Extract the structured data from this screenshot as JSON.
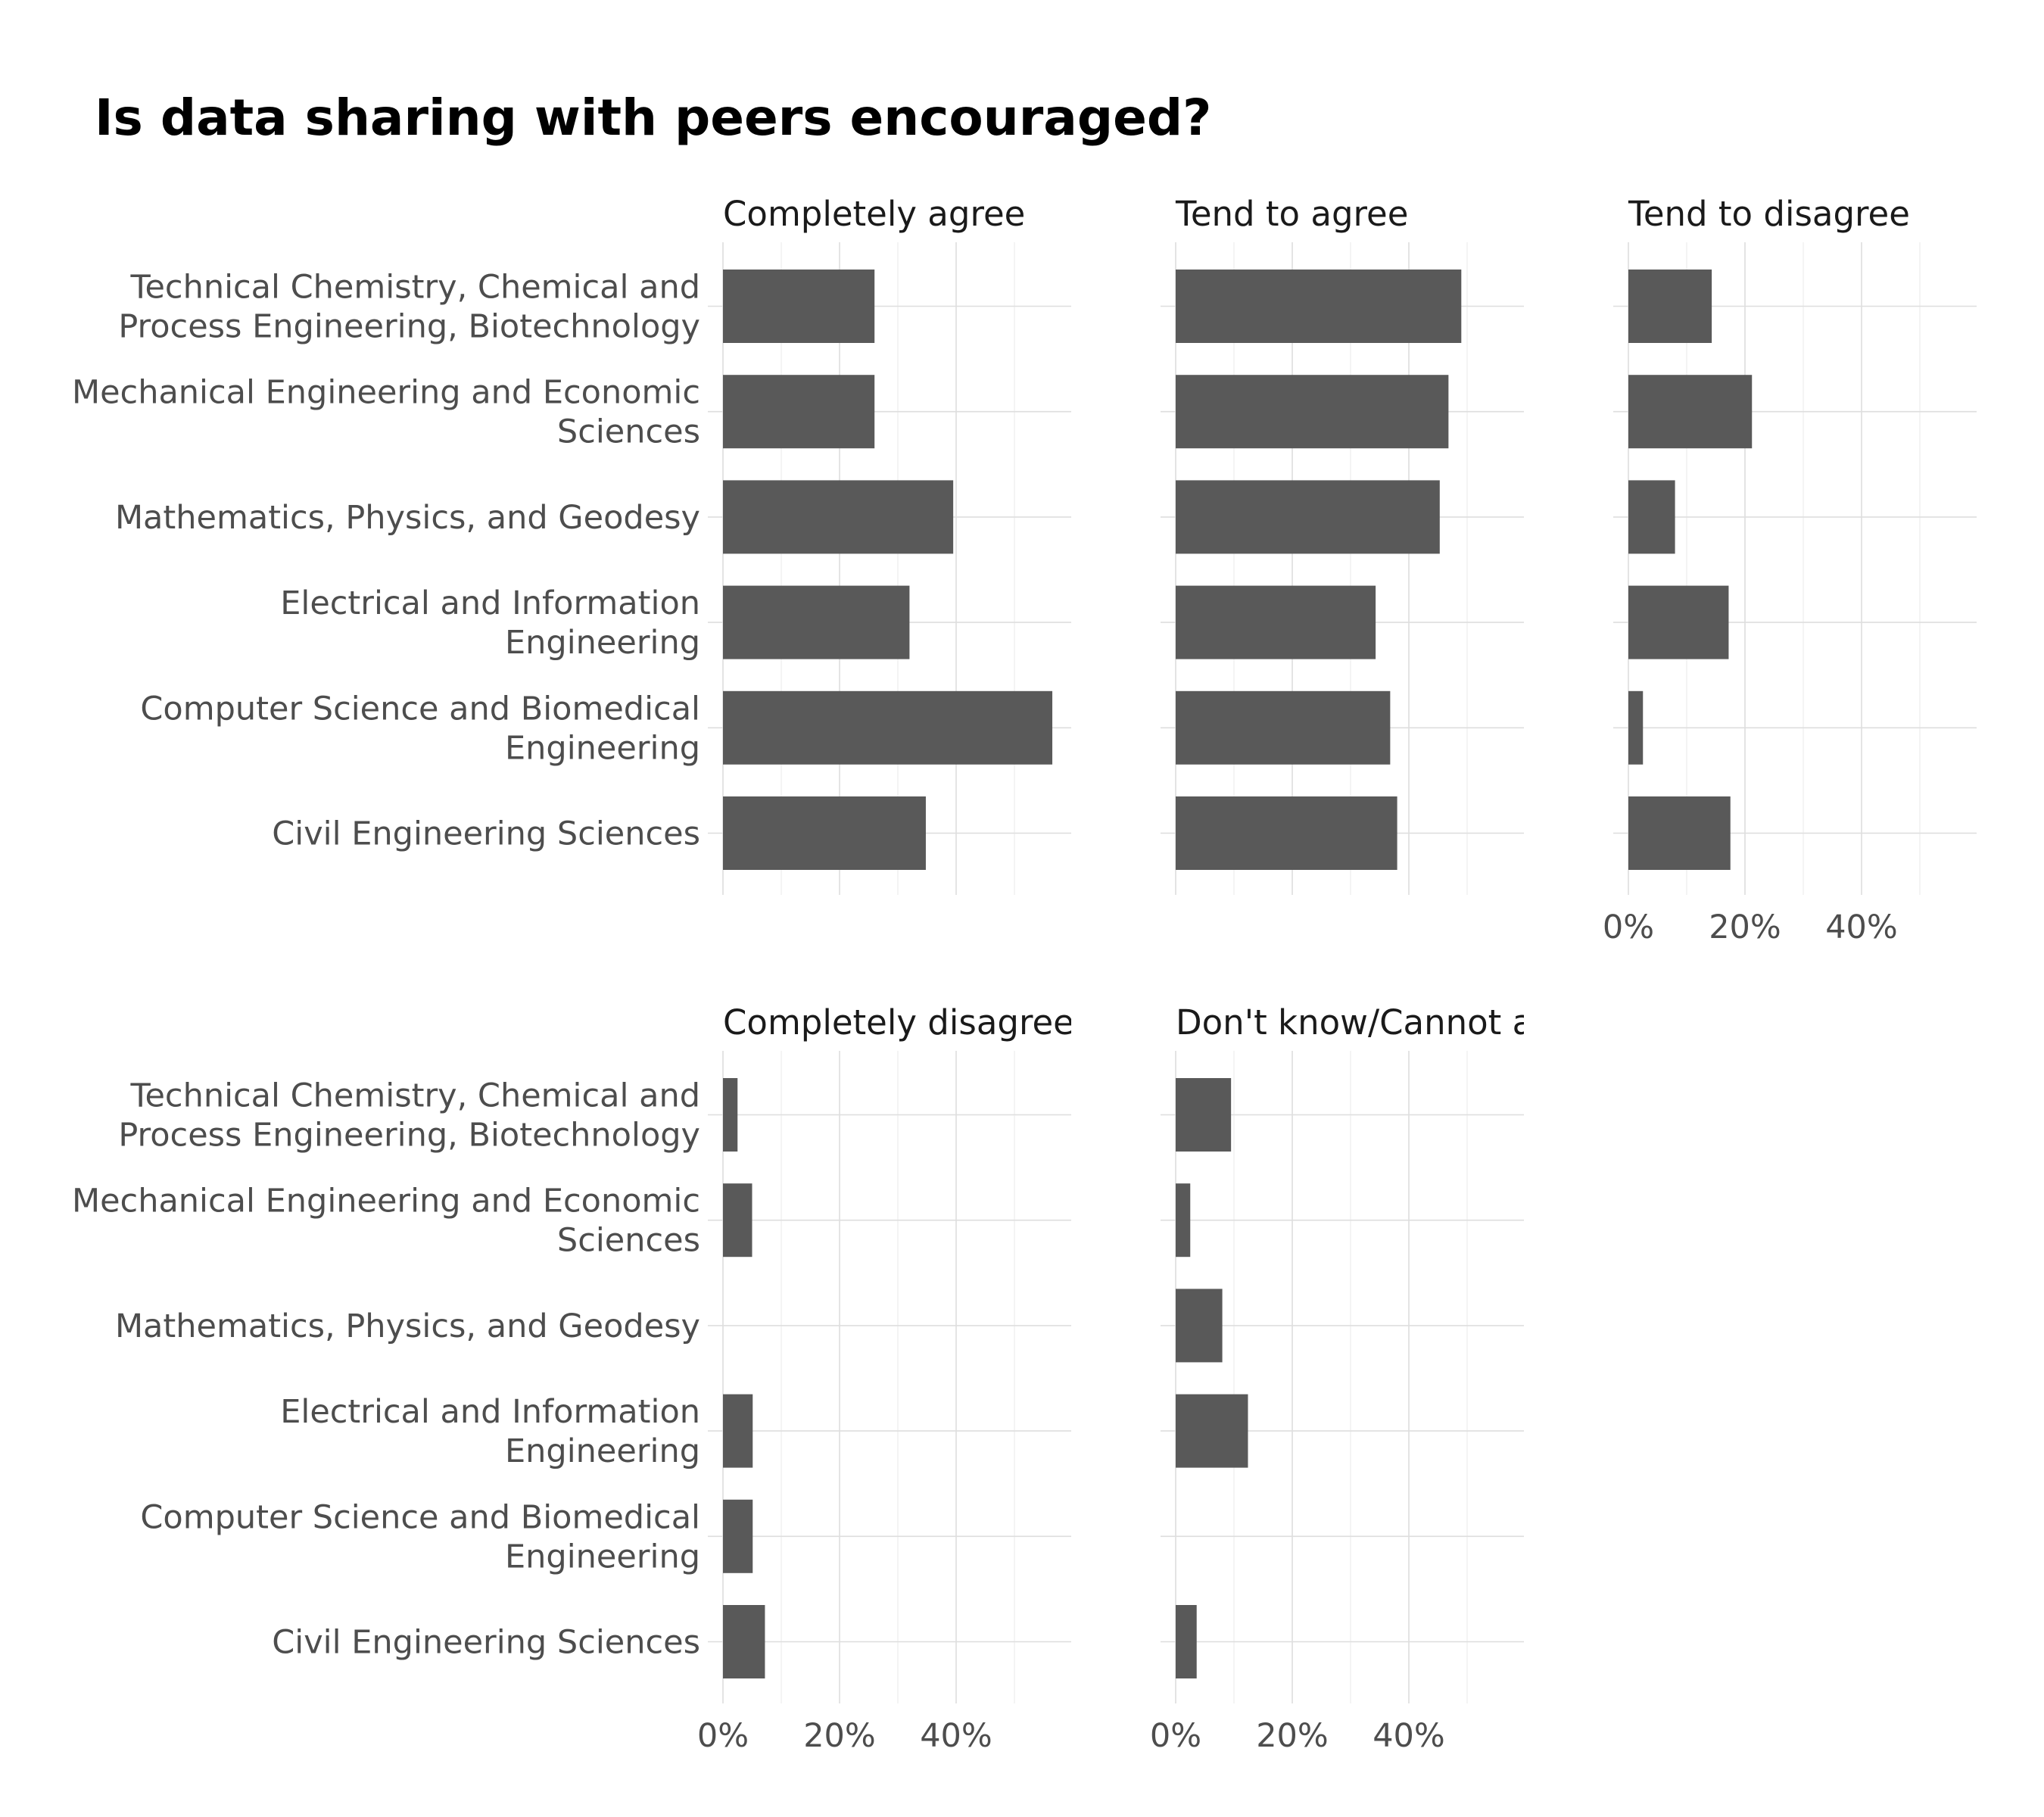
{
  "chart_data": {
    "type": "bar",
    "orientation": "horizontal",
    "title": "Is data sharing with peers encouraged?",
    "xlabel": "",
    "ylabel": "",
    "xlim": [
      0,
      0.6
    ],
    "x_ticks": [
      0,
      0.2,
      0.4
    ],
    "x_tick_labels": [
      "0%",
      "20%",
      "40%"
    ],
    "grid": true,
    "categories": [
      "Technical Chemistry, Chemical and Process Engineering, Biotechnology",
      "Mechanical Engineering and Economic Sciences",
      "Mathematics, Physics, and Geodesy",
      "Electrical and Information Engineering",
      "Computer Science and Biomedical Engineering",
      "Civil Engineering Sciences"
    ],
    "category_label_lines": [
      [
        "Technical Chemistry, Chemical and",
        "Process Engineering, Biotechnology"
      ],
      [
        "Mechanical Engineering and Economic",
        "Sciences"
      ],
      [
        "Mathematics, Physics, and Geodesy"
      ],
      [
        "Electrical and Information",
        "Engineering"
      ],
      [
        "Computer Science and Biomedical",
        "Engineering"
      ],
      [
        "Civil Engineering Sciences"
      ]
    ],
    "facets": [
      {
        "name": "Completely agree",
        "values": [
          0.26,
          0.26,
          0.395,
          0.32,
          0.565,
          0.348
        ]
      },
      {
        "name": "Tend to agree",
        "values": [
          0.49,
          0.468,
          0.453,
          0.343,
          0.368,
          0.38
        ]
      },
      {
        "name": "Tend to disagree",
        "values": [
          0.143,
          0.212,
          0.08,
          0.172,
          0.025,
          0.175
        ]
      },
      {
        "name": "Completely disagree",
        "values": [
          0.025,
          0.05,
          0,
          0.051,
          0.051,
          0.072
        ]
      },
      {
        "name": "Don't know/Cannot a",
        "values": [
          0.095,
          0.025,
          0.08,
          0.124,
          0,
          0.036
        ]
      }
    ],
    "bar_color": "#595959"
  }
}
